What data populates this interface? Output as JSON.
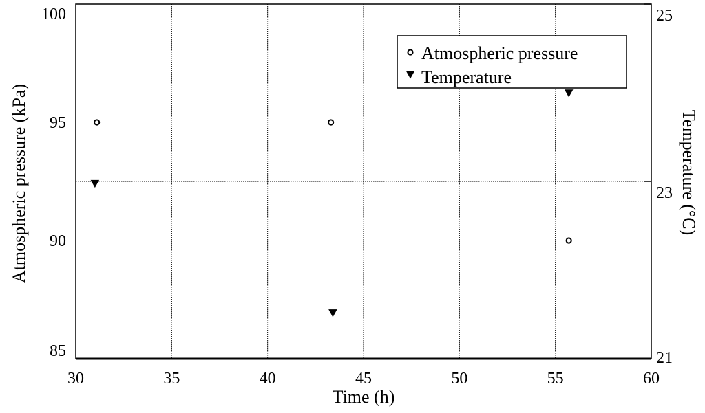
{
  "chart_data": {
    "type": "scatter",
    "title": "",
    "xlabel": "Time (h)",
    "ylabel_left": "Atmospheric pressure (kPa)",
    "ylabel_right": "Temperature (°C)",
    "xlim": [
      30,
      60
    ],
    "ylim_left": [
      85,
      100
    ],
    "ylim_right": [
      21,
      25
    ],
    "xticks": [
      "30",
      "35",
      "40",
      "45",
      "50",
      "55",
      "60"
    ],
    "yticks_left": [
      "85",
      "90",
      "95",
      "100"
    ],
    "yticks_right": [
      "21",
      "23",
      "25"
    ],
    "grid": true,
    "legend_position": "top-right",
    "colors": {
      "marker": "#000000",
      "grid": "#000000",
      "axis": "#000000"
    },
    "series": [
      {
        "name": "Atmospheric pressure",
        "marker": "circle",
        "axis": "left",
        "x": [
          31.1,
          43.3,
          55.7
        ],
        "y": [
          95.0,
          95.0,
          90.0
        ]
      },
      {
        "name": "Temperature",
        "marker": "triangle-down",
        "axis": "right",
        "x": [
          31.0,
          43.4,
          55.7
        ],
        "y": [
          22.98,
          21.52,
          24.0
        ]
      }
    ]
  }
}
